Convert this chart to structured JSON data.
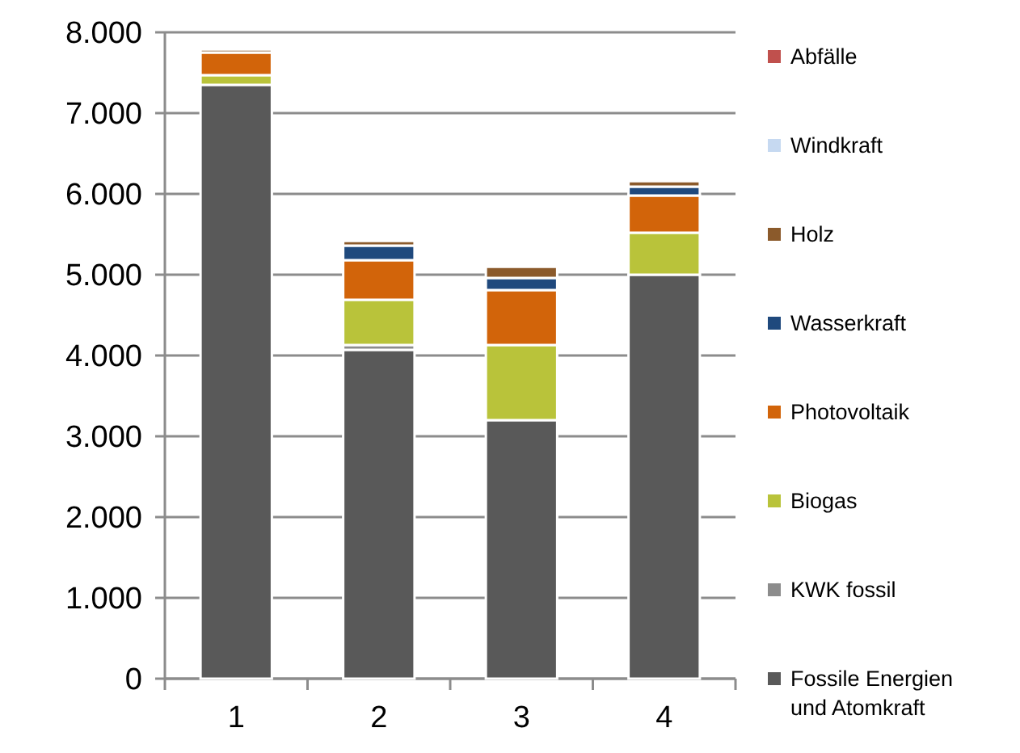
{
  "chart_data": {
    "type": "bar",
    "stacked": true,
    "categories": [
      "1",
      "2",
      "3",
      "4"
    ],
    "series": [
      {
        "name": "Fossile Energien und Atomkraft",
        "color": "#595959",
        "values": [
          7350,
          4070,
          3200,
          5000
        ]
      },
      {
        "name": "KWK fossil",
        "color": "#8c8c8c",
        "values": [
          null,
          60,
          0,
          0
        ]
      },
      {
        "name": "Biogas",
        "color": "#b9c33a",
        "values": [
          120,
          560,
          930,
          520
        ]
      },
      {
        "name": "Photovoltaik",
        "color": "#d2640a",
        "values": [
          280,
          490,
          680,
          460
        ]
      },
      {
        "name": "Wasserkraft",
        "color": "#1f497d",
        "values": [
          0,
          180,
          150,
          110
        ]
      },
      {
        "name": "Holz",
        "color": "#8b5a2b",
        "values": [
          40,
          60,
          140,
          70
        ]
      },
      {
        "name": "Windkraft",
        "color": "#c6d9f1",
        "values": [
          10,
          10,
          20,
          20
        ]
      },
      {
        "name": "Abfälle",
        "color": "#c0504d",
        "values": [
          10,
          10,
          0,
          20
        ]
      }
    ],
    "ylim": [
      0,
      8000
    ],
    "yticks": [
      {
        "value": 0,
        "label": "0"
      },
      {
        "value": 1000,
        "label": "1.000"
      },
      {
        "value": 2000,
        "label": "2.000"
      },
      {
        "value": 3000,
        "label": "3.000"
      },
      {
        "value": 4000,
        "label": "4.000"
      },
      {
        "value": 5000,
        "label": "5.000"
      },
      {
        "value": 6000,
        "label": "6.000"
      },
      {
        "value": 7000,
        "label": "7.000"
      },
      {
        "value": 8000,
        "label": "8.000"
      }
    ],
    "grid": "y",
    "legend": "right"
  }
}
